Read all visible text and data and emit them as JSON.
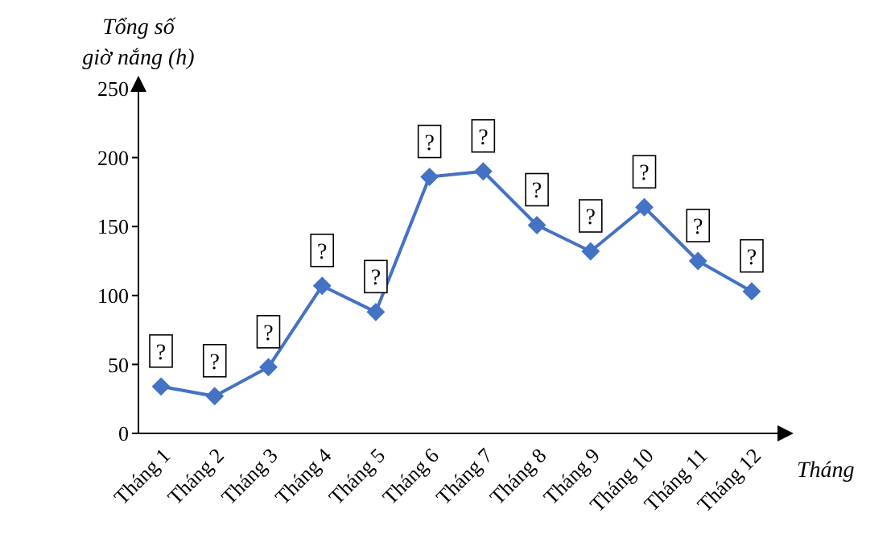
{
  "chart_data": {
    "type": "line",
    "ylabel": "Tổng số giờ nắng (h)",
    "xlabel": "Tháng",
    "categories": [
      "Tháng 1",
      "Tháng 2",
      "Tháng 3",
      "Tháng 4",
      "Tháng 5",
      "Tháng 6",
      "Tháng 7",
      "Tháng 8",
      "Tháng 9",
      "Tháng 10",
      "Tháng 11",
      "Tháng 12"
    ],
    "series": [
      {
        "color": "#4472c4",
        "values": [
          34,
          27,
          48,
          107,
          88,
          186,
          190,
          151,
          132,
          164,
          125,
          103
        ],
        "value_labels": [
          "?",
          "?",
          "?",
          "?",
          "?",
          "?",
          "?",
          "?",
          "?",
          "?",
          "?",
          "?"
        ]
      }
    ],
    "ylim": [
      0,
      250
    ],
    "yticks": [
      0,
      50,
      100,
      150,
      200,
      250
    ],
    "grid": false,
    "legend": false,
    "marker": "diamond",
    "line_style": "solid"
  }
}
